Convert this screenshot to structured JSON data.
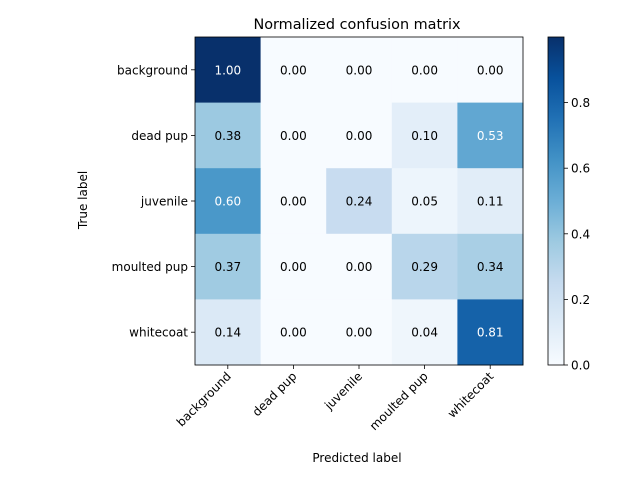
{
  "chart_data": {
    "type": "heatmap",
    "title": "Normalized confusion matrix",
    "xlabel": "Predicted label",
    "ylabel": "True label",
    "x_categories": [
      "background",
      "dead pup",
      "juvenile",
      "moulted pup",
      "whitecoat"
    ],
    "y_categories": [
      "background",
      "dead pup",
      "juvenile",
      "moulted pup",
      "whitecoat"
    ],
    "values": [
      [
        1.0,
        0.0,
        0.0,
        0.0,
        0.0
      ],
      [
        0.38,
        0.0,
        0.0,
        0.1,
        0.53
      ],
      [
        0.6,
        0.0,
        0.24,
        0.05,
        0.11
      ],
      [
        0.37,
        0.0,
        0.0,
        0.29,
        0.34
      ],
      [
        0.14,
        0.0,
        0.0,
        0.04,
        0.81
      ]
    ],
    "value_labels": [
      [
        "1.00",
        "0.00",
        "0.00",
        "0.00",
        "0.00"
      ],
      [
        "0.38",
        "0.00",
        "0.00",
        "0.10",
        "0.53"
      ],
      [
        "0.60",
        "0.00",
        "0.24",
        "0.05",
        "0.11"
      ],
      [
        "0.37",
        "0.00",
        "0.00",
        "0.29",
        "0.34"
      ],
      [
        "0.14",
        "0.00",
        "0.00",
        "0.04",
        "0.81"
      ]
    ],
    "colormap": "Blues",
    "color_range": [
      0,
      1.0
    ],
    "colorbar_ticks": [
      0.0,
      0.2,
      0.4,
      0.6,
      0.8
    ],
    "colorbar_tick_labels": [
      "0.0",
      "0.2",
      "0.4",
      "0.6",
      "0.8"
    ],
    "grid": false
  }
}
